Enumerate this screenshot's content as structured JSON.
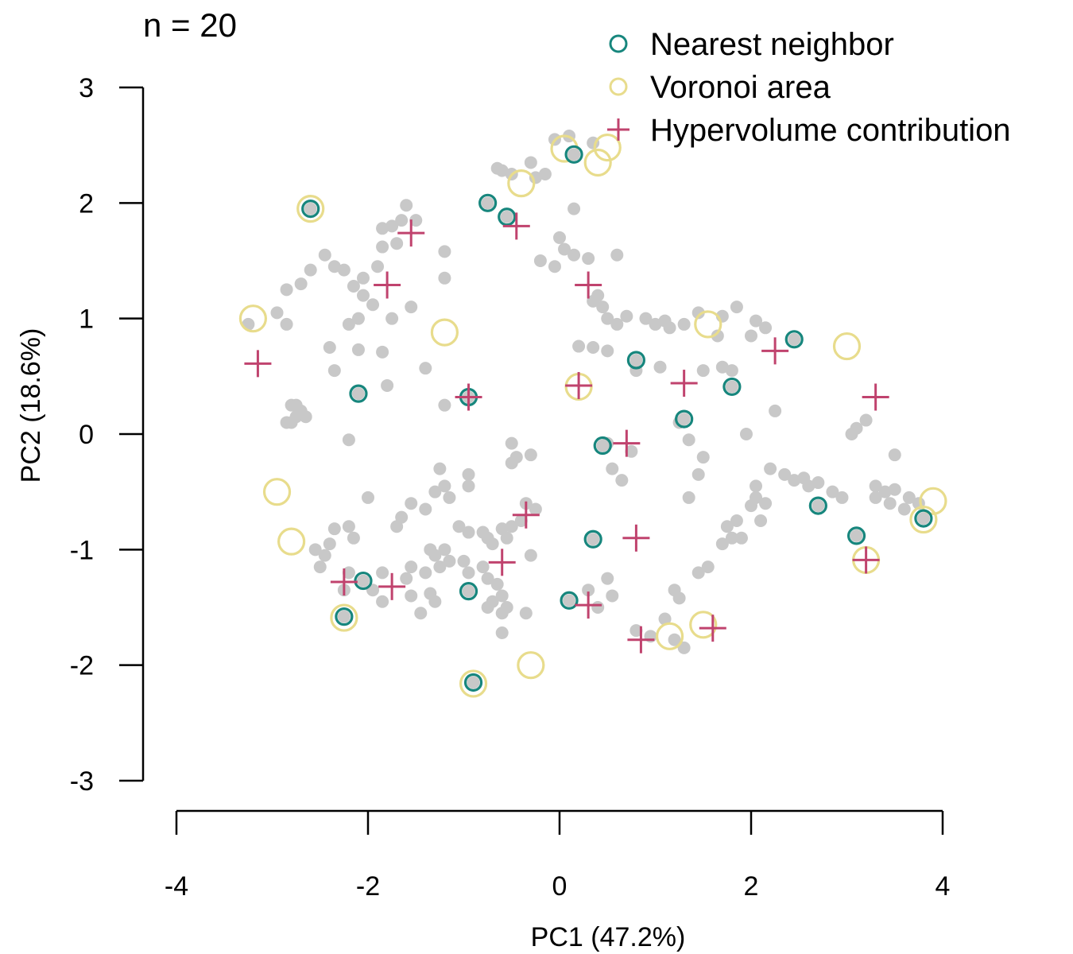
{
  "chart_data": {
    "type": "scatter",
    "title": "",
    "annotation": "n = 20",
    "xlabel": "PC1 (47.2%)",
    "ylabel": "PC2 (18.6%)",
    "xlim": [
      -4,
      4
    ],
    "ylim": [
      -3,
      3
    ],
    "x_ticks": [
      -4,
      -2,
      0,
      2,
      4
    ],
    "y_ticks": [
      3,
      2,
      1,
      0,
      -1,
      -2,
      -3
    ],
    "x_tick_labels": [
      "-4",
      "-2",
      "0",
      "2",
      "4"
    ],
    "y_tick_labels": [
      "3",
      "2",
      "1",
      "0",
      "-1",
      "-2",
      "-3"
    ],
    "grid": false,
    "legend_position": "top-right",
    "colors": {
      "background": "#c8c8c8",
      "nearest_neighbor": "#17867d",
      "voronoi_area": "#e8dc8c",
      "hypervolume_contribution": "#c0436e"
    },
    "series": [
      {
        "name": "Nearest neighbor",
        "marker": "open-circle",
        "points": [
          [
            -2.6,
            1.95
          ],
          [
            0.15,
            2.42
          ],
          [
            -0.75,
            2.0
          ],
          [
            -0.55,
            1.88
          ],
          [
            -2.1,
            0.35
          ],
          [
            -0.95,
            0.32
          ],
          [
            0.8,
            0.64
          ],
          [
            2.45,
            0.82
          ],
          [
            1.8,
            0.41
          ],
          [
            1.3,
            0.13
          ],
          [
            0.45,
            -0.1
          ],
          [
            2.7,
            -0.62
          ],
          [
            3.8,
            -0.73
          ],
          [
            3.1,
            -0.88
          ],
          [
            0.35,
            -0.91
          ],
          [
            -2.05,
            -1.27
          ],
          [
            -2.25,
            -1.58
          ],
          [
            -0.95,
            -1.36
          ],
          [
            0.1,
            -1.44
          ],
          [
            -0.9,
            -2.15
          ]
        ]
      },
      {
        "name": "Voronoi area",
        "marker": "open-circle-large",
        "points": [
          [
            -2.6,
            1.95
          ],
          [
            0.05,
            2.47
          ],
          [
            0.5,
            2.48
          ],
          [
            0.4,
            2.35
          ],
          [
            -0.4,
            2.17
          ],
          [
            -3.2,
            1.0
          ],
          [
            -1.2,
            0.88
          ],
          [
            1.55,
            0.95
          ],
          [
            3.0,
            0.76
          ],
          [
            0.2,
            0.41
          ],
          [
            -2.95,
            -0.5
          ],
          [
            -2.8,
            -0.93
          ],
          [
            3.9,
            -0.58
          ],
          [
            3.8,
            -0.74
          ],
          [
            3.2,
            -1.09
          ],
          [
            -2.25,
            -1.59
          ],
          [
            1.15,
            -1.75
          ],
          [
            1.5,
            -1.65
          ],
          [
            -0.3,
            -2.0
          ],
          [
            -0.9,
            -2.16
          ]
        ]
      },
      {
        "name": "Hypervolume contribution",
        "marker": "plus",
        "points": [
          [
            -1.55,
            1.74
          ],
          [
            -0.45,
            1.8
          ],
          [
            -1.8,
            1.29
          ],
          [
            0.3,
            1.29
          ],
          [
            -3.15,
            0.61
          ],
          [
            2.25,
            0.72
          ],
          [
            1.3,
            0.44
          ],
          [
            3.3,
            0.32
          ],
          [
            0.2,
            0.42
          ],
          [
            -0.95,
            0.32
          ],
          [
            0.7,
            -0.08
          ],
          [
            -0.35,
            -0.7
          ],
          [
            0.8,
            -0.9
          ],
          [
            -0.6,
            -1.11
          ],
          [
            3.2,
            -1.09
          ],
          [
            -2.25,
            -1.28
          ],
          [
            -1.75,
            -1.32
          ],
          [
            0.3,
            -1.48
          ],
          [
            1.6,
            -1.68
          ],
          [
            0.85,
            -1.78
          ]
        ]
      }
    ],
    "background_points": [
      [
        -0.05,
        2.55
      ],
      [
        0.1,
        2.58
      ],
      [
        0.35,
        2.52
      ],
      [
        -0.65,
        2.3
      ],
      [
        -0.6,
        2.28
      ],
      [
        -0.5,
        2.25
      ],
      [
        -0.3,
        2.35
      ],
      [
        -0.15,
        2.25
      ],
      [
        -0.25,
        2.22
      ],
      [
        -1.6,
        1.98
      ],
      [
        -1.65,
        1.85
      ],
      [
        -1.85,
        1.78
      ],
      [
        -1.75,
        1.8
      ],
      [
        -1.5,
        1.85
      ],
      [
        -1.7,
        1.65
      ],
      [
        -1.85,
        1.62
      ],
      [
        -1.2,
        1.58
      ],
      [
        0.15,
        1.95
      ],
      [
        -2.45,
        1.55
      ],
      [
        -2.35,
        1.45
      ],
      [
        -2.25,
        1.42
      ],
      [
        -2.05,
        1.35
      ],
      [
        -2.15,
        1.28
      ],
      [
        -1.9,
        1.45
      ],
      [
        -2.6,
        1.42
      ],
      [
        -2.85,
        1.25
      ],
      [
        -2.7,
        1.3
      ],
      [
        -2.05,
        1.2
      ],
      [
        -1.95,
        1.12
      ],
      [
        -1.55,
        1.1
      ],
      [
        -1.75,
        1.0
      ],
      [
        -2.1,
        1.0
      ],
      [
        -2.2,
        0.95
      ],
      [
        -2.85,
        0.95
      ],
      [
        -3.25,
        0.95
      ],
      [
        -2.95,
        1.05
      ],
      [
        -1.2,
        1.35
      ],
      [
        -0.2,
        1.5
      ],
      [
        -0.05,
        1.45
      ],
      [
        0.05,
        1.6
      ],
      [
        0.15,
        1.55
      ],
      [
        0.3,
        1.52
      ],
      [
        0.6,
        1.55
      ],
      [
        0.0,
        1.7
      ],
      [
        0.35,
        1.15
      ],
      [
        0.4,
        1.2
      ],
      [
        0.45,
        1.1
      ],
      [
        0.5,
        1.0
      ],
      [
        0.6,
        0.95
      ],
      [
        0.7,
        1.02
      ],
      [
        0.9,
        1.0
      ],
      [
        1.0,
        0.95
      ],
      [
        1.1,
        0.98
      ],
      [
        1.15,
        0.92
      ],
      [
        1.3,
        0.95
      ],
      [
        1.45,
        1.05
      ],
      [
        1.7,
        1.02
      ],
      [
        1.85,
        1.1
      ],
      [
        2.05,
        0.98
      ],
      [
        2.15,
        0.92
      ],
      [
        2.0,
        0.85
      ],
      [
        1.65,
        0.85
      ],
      [
        0.2,
        0.76
      ],
      [
        0.35,
        0.75
      ],
      [
        0.5,
        0.72
      ],
      [
        0.8,
        0.55
      ],
      [
        1.05,
        0.58
      ],
      [
        1.5,
        0.55
      ],
      [
        1.7,
        0.58
      ],
      [
        1.8,
        0.55
      ],
      [
        -2.4,
        0.75
      ],
      [
        -2.35,
        0.55
      ],
      [
        -2.1,
        0.73
      ],
      [
        -1.85,
        0.71
      ],
      [
        -1.4,
        0.57
      ],
      [
        -1.2,
        0.25
      ],
      [
        -1.8,
        0.42
      ],
      [
        -2.75,
        0.15
      ],
      [
        -2.8,
        0.25
      ],
      [
        -2.7,
        0.2
      ],
      [
        -2.75,
        0.25
      ],
      [
        -2.85,
        0.1
      ],
      [
        -2.65,
        0.15
      ],
      [
        -2.8,
        0.1
      ],
      [
        -2.2,
        -0.05
      ],
      [
        -0.5,
        -0.08
      ],
      [
        -0.45,
        -0.2
      ],
      [
        -0.5,
        -0.25
      ],
      [
        -0.3,
        -0.18
      ],
      [
        0.5,
        -0.08
      ],
      [
        0.55,
        -0.3
      ],
      [
        0.65,
        -0.4
      ],
      [
        0.75,
        -0.15
      ],
      [
        1.25,
        0.1
      ],
      [
        1.35,
        -0.05
      ],
      [
        1.5,
        -0.2
      ],
      [
        1.45,
        -0.35
      ],
      [
        1.35,
        -0.55
      ],
      [
        1.95,
        0.0
      ],
      [
        2.25,
        0.2
      ],
      [
        2.2,
        -0.3
      ],
      [
        2.35,
        -0.35
      ],
      [
        2.45,
        -0.4
      ],
      [
        2.55,
        -0.38
      ],
      [
        2.6,
        -0.45
      ],
      [
        2.7,
        -0.42
      ],
      [
        2.85,
        -0.5
      ],
      [
        2.95,
        -0.55
      ],
      [
        2.05,
        -0.45
      ],
      [
        2.05,
        -0.55
      ],
      [
        2.0,
        -0.62
      ],
      [
        2.15,
        -0.6
      ],
      [
        2.1,
        -0.75
      ],
      [
        3.05,
        0.0
      ],
      [
        3.1,
        0.05
      ],
      [
        3.2,
        0.12
      ],
      [
        3.5,
        -0.18
      ],
      [
        3.3,
        -0.45
      ],
      [
        3.4,
        -0.5
      ],
      [
        3.5,
        -0.48
      ],
      [
        3.65,
        -0.55
      ],
      [
        3.75,
        -0.6
      ],
      [
        3.6,
        -0.65
      ],
      [
        3.45,
        -0.6
      ],
      [
        3.3,
        -0.55
      ],
      [
        -1.25,
        -0.3
      ],
      [
        -1.2,
        -0.45
      ],
      [
        -1.15,
        -0.55
      ],
      [
        -1.3,
        -0.5
      ],
      [
        -1.4,
        -0.65
      ],
      [
        -0.95,
        -0.35
      ],
      [
        -0.95,
        -0.45
      ],
      [
        -2.0,
        -0.55
      ],
      [
        -1.55,
        -0.6
      ],
      [
        -1.7,
        -0.8
      ],
      [
        -1.65,
        -0.72
      ],
      [
        -1.05,
        -0.8
      ],
      [
        -0.95,
        -0.85
      ],
      [
        -0.8,
        -0.85
      ],
      [
        -0.75,
        -0.9
      ],
      [
        -0.55,
        -0.9
      ],
      [
        -0.35,
        -0.6
      ],
      [
        -0.25,
        -0.65
      ],
      [
        -0.4,
        -0.75
      ],
      [
        -0.5,
        -0.8
      ],
      [
        -0.6,
        -0.82
      ],
      [
        -0.7,
        -0.95
      ],
      [
        -0.3,
        -1.05
      ],
      [
        -2.35,
        -0.82
      ],
      [
        -2.2,
        -0.8
      ],
      [
        -2.15,
        -0.9
      ],
      [
        -2.4,
        -0.95
      ],
      [
        -2.55,
        -1.0
      ],
      [
        -2.45,
        -1.05
      ],
      [
        -2.5,
        -1.15
      ],
      [
        -1.35,
        -1.0
      ],
      [
        -1.3,
        -1.05
      ],
      [
        -1.2,
        -1.0
      ],
      [
        -1.15,
        -1.1
      ],
      [
        -1.25,
        -1.15
      ],
      [
        -1.4,
        -1.2
      ],
      [
        -1.55,
        -1.15
      ],
      [
        -1.6,
        -1.25
      ],
      [
        -1.0,
        -1.1
      ],
      [
        -0.95,
        -1.2
      ],
      [
        -0.8,
        -1.15
      ],
      [
        -0.75,
        -1.25
      ],
      [
        -0.65,
        -1.3
      ],
      [
        -0.6,
        -1.4
      ],
      [
        -0.7,
        -1.45
      ],
      [
        -0.75,
        -1.5
      ],
      [
        -0.55,
        -1.5
      ],
      [
        -0.6,
        -1.55
      ],
      [
        -0.35,
        -1.55
      ],
      [
        -0.6,
        -1.72
      ],
      [
        -1.3,
        -1.45
      ],
      [
        -1.45,
        -1.55
      ],
      [
        -1.35,
        -1.38
      ],
      [
        -1.85,
        -1.2
      ],
      [
        -1.95,
        -1.35
      ],
      [
        -1.85,
        -1.45
      ],
      [
        -1.55,
        -1.4
      ],
      [
        -2.2,
        -1.2
      ],
      [
        -2.25,
        -1.35
      ],
      [
        0.5,
        -1.25
      ],
      [
        0.3,
        -1.35
      ],
      [
        0.55,
        -1.4
      ],
      [
        0.4,
        -1.5
      ],
      [
        0.8,
        -1.7
      ],
      [
        0.95,
        -1.75
      ],
      [
        1.1,
        -1.6
      ],
      [
        1.2,
        -1.78
      ],
      [
        1.3,
        -1.85
      ],
      [
        1.2,
        -1.35
      ],
      [
        1.25,
        -1.42
      ],
      [
        1.45,
        -1.2
      ],
      [
        1.55,
        -1.15
      ],
      [
        1.7,
        -0.95
      ],
      [
        1.8,
        -0.9
      ],
      [
        1.9,
        -0.9
      ],
      [
        1.85,
        -0.75
      ],
      [
        1.75,
        -0.8
      ]
    ]
  }
}
